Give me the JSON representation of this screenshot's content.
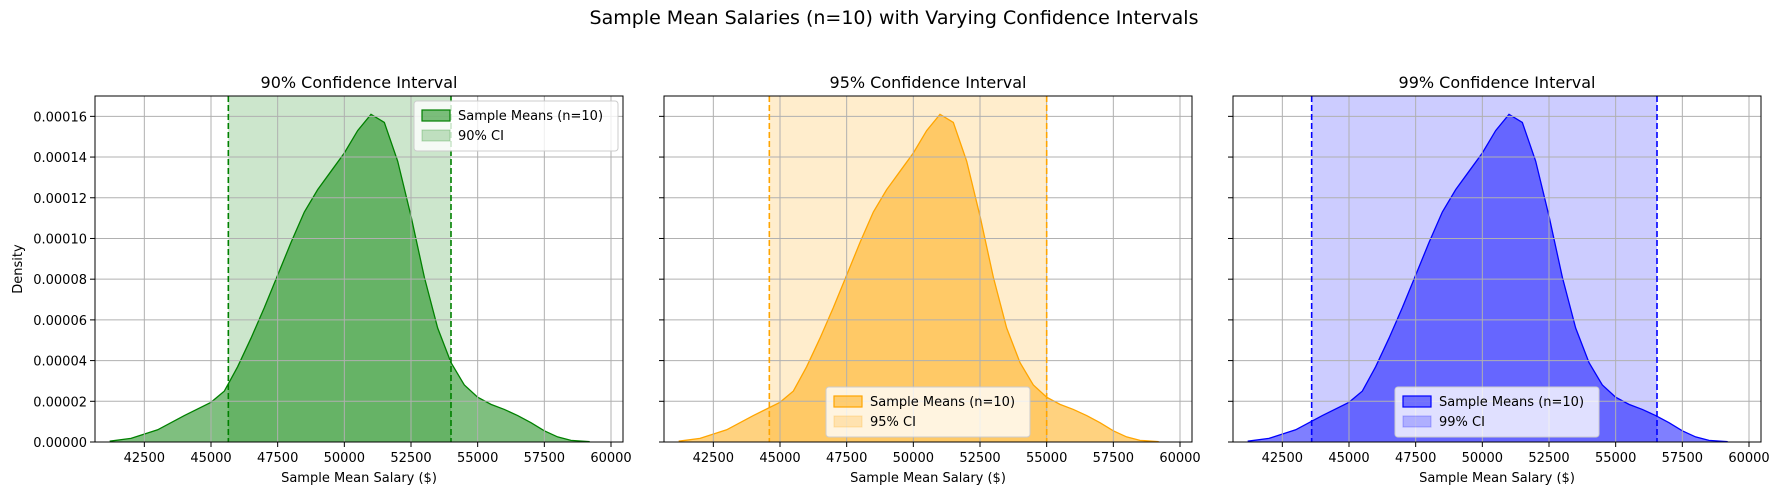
{
  "figure_title": "Sample Mean Salaries (n=10) with Varying Confidence Intervals",
  "chart_data": [
    {
      "type": "area",
      "title": "90% Confidence Interval",
      "xlabel": "Sample Mean Salary ($)",
      "ylabel": "Density",
      "xlim": [
        40650,
        60450
      ],
      "ylim": [
        0,
        0.00017
      ],
      "xticks": [
        42500,
        45000,
        47500,
        50000,
        52500,
        55000,
        57500,
        60000
      ],
      "xtick_labels": [
        "42500",
        "45000",
        "47500",
        "50000",
        "52500",
        "55000",
        "57500",
        "60000"
      ],
      "yticks": [
        0,
        2e-05,
        4e-05,
        6e-05,
        8e-05,
        0.0001,
        0.00012,
        0.00014,
        0.00016
      ],
      "ytick_labels": [
        "0.00000",
        "0.00002",
        "0.00004",
        "0.00006",
        "0.00008",
        "0.00010",
        "0.00012",
        "0.00014",
        "0.00016"
      ],
      "grid": true,
      "color": "#008000",
      "ci_label": "90% CI",
      "ci": [
        45650,
        54000
      ],
      "legend_entries": [
        "Sample Means (n=10)",
        "90% CI"
      ],
      "legend_loc": "upper right",
      "kde_label": "Sample Means (n=10)",
      "kde": {
        "x": [
          41200,
          42000,
          43000,
          44000,
          45000,
          45500,
          46000,
          46500,
          47000,
          47500,
          48000,
          48500,
          49000,
          49500,
          50000,
          50500,
          51000,
          51500,
          52000,
          52500,
          53000,
          53500,
          54000,
          54500,
          55000,
          55500,
          56000,
          56500,
          57000,
          57500,
          58000,
          58500,
          59200
        ],
        "y": [
          4e-07,
          1.8e-06,
          6e-06,
          1.3e-05,
          1.95e-05,
          2.5e-05,
          3.7e-05,
          5.1e-05,
          6.6e-05,
          8.2e-05,
          9.8e-05,
          0.000113,
          0.000124,
          0.000133,
          0.000142,
          0.000153,
          0.000161,
          0.000157,
          0.000138,
          0.000111,
          8.1e-05,
          5.6e-05,
          3.9e-05,
          2.8e-05,
          2.2e-05,
          1.85e-05,
          1.6e-05,
          1.3e-05,
          9.5e-06,
          5.5e-06,
          2.5e-06,
          8e-07,
          2e-07
        ]
      }
    },
    {
      "type": "area",
      "title": "95% Confidence Interval",
      "xlabel": "Sample Mean Salary ($)",
      "xlim": [
        40650,
        60450
      ],
      "ylim": [
        0,
        0.00017
      ],
      "xticks": [
        42500,
        45000,
        47500,
        50000,
        52500,
        55000,
        57500,
        60000
      ],
      "xtick_labels": [
        "42500",
        "45000",
        "47500",
        "50000",
        "52500",
        "55000",
        "57500",
        "60000"
      ],
      "yticks": [
        0,
        2e-05,
        4e-05,
        6e-05,
        8e-05,
        0.0001,
        0.00012,
        0.00014,
        0.00016
      ],
      "grid": true,
      "color": "#FFA500",
      "ci_label": "95% CI",
      "ci": [
        44600,
        55000
      ],
      "legend_entries": [
        "Sample Means (n=10)",
        "95% CI"
      ],
      "legend_loc": "lower center",
      "kde_label": "Sample Means (n=10)",
      "kde": {
        "x": [
          41200,
          42000,
          43000,
          44000,
          45000,
          45500,
          46000,
          46500,
          47000,
          47500,
          48000,
          48500,
          49000,
          49500,
          50000,
          50500,
          51000,
          51500,
          52000,
          52500,
          53000,
          53500,
          54000,
          54500,
          55000,
          55500,
          56000,
          56500,
          57000,
          57500,
          58000,
          58500,
          59200
        ],
        "y": [
          4e-07,
          1.8e-06,
          6e-06,
          1.3e-05,
          1.95e-05,
          2.5e-05,
          3.7e-05,
          5.1e-05,
          6.6e-05,
          8.2e-05,
          9.8e-05,
          0.000113,
          0.000124,
          0.000133,
          0.000142,
          0.000153,
          0.000161,
          0.000157,
          0.000138,
          0.000111,
          8.1e-05,
          5.6e-05,
          3.9e-05,
          2.8e-05,
          2.2e-05,
          1.85e-05,
          1.6e-05,
          1.3e-05,
          9.5e-06,
          5.5e-06,
          2.5e-06,
          8e-07,
          2e-07
        ]
      }
    },
    {
      "type": "area",
      "title": "99% Confidence Interval",
      "xlabel": "Sample Mean Salary ($)",
      "xlim": [
        40650,
        60450
      ],
      "ylim": [
        0,
        0.00017
      ],
      "xticks": [
        42500,
        45000,
        47500,
        50000,
        52500,
        55000,
        57500,
        60000
      ],
      "xtick_labels": [
        "42500",
        "45000",
        "47500",
        "50000",
        "52500",
        "55000",
        "57500",
        "60000"
      ],
      "yticks": [
        0,
        2e-05,
        4e-05,
        6e-05,
        8e-05,
        0.0001,
        0.00012,
        0.00014,
        0.00016
      ],
      "grid": true,
      "color": "#0000FF",
      "ci_label": "99% CI",
      "ci": [
        43600,
        56550
      ],
      "legend_entries": [
        "Sample Means (n=10)",
        "99% CI"
      ],
      "legend_loc": "lower center",
      "kde_label": "Sample Means (n=10)",
      "kde": {
        "x": [
          41200,
          42000,
          43000,
          44000,
          45000,
          45500,
          46000,
          46500,
          47000,
          47500,
          48000,
          48500,
          49000,
          49500,
          50000,
          50500,
          51000,
          51500,
          52000,
          52500,
          53000,
          53500,
          54000,
          54500,
          55000,
          55500,
          56000,
          56500,
          57000,
          57500,
          58000,
          58500,
          59200
        ],
        "y": [
          4e-07,
          1.8e-06,
          6e-06,
          1.3e-05,
          1.95e-05,
          2.5e-05,
          3.7e-05,
          5.1e-05,
          6.6e-05,
          8.2e-05,
          9.8e-05,
          0.000113,
          0.000124,
          0.000133,
          0.000142,
          0.000153,
          0.000161,
          0.000157,
          0.000138,
          0.000111,
          8.1e-05,
          5.6e-05,
          3.9e-05,
          2.8e-05,
          2.2e-05,
          1.85e-05,
          1.6e-05,
          1.3e-05,
          9.5e-06,
          5.5e-06,
          2.5e-06,
          8e-07,
          2e-07
        ]
      }
    }
  ]
}
